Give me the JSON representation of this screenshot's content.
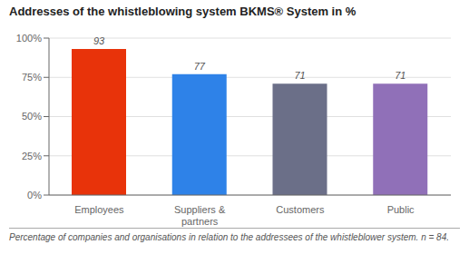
{
  "chart_data": {
    "type": "bar",
    "title": "Addresses of the whistleblowing system BKMS® System in %",
    "categories": [
      "Employees",
      "Suppliers &\npartners",
      "Customers",
      "Public"
    ],
    "values": [
      93,
      77,
      71,
      71
    ],
    "colors": [
      "#e8330a",
      "#2e82e8",
      "#6b6f88",
      "#9070b8"
    ],
    "ylim": [
      0,
      100
    ],
    "yticks": [
      {
        "value": 0,
        "label": "0%"
      },
      {
        "value": 25,
        "label": "25%"
      },
      {
        "value": 50,
        "label": "50%"
      },
      {
        "value": 75,
        "label": "75%"
      },
      {
        "value": 100,
        "label": "100%"
      }
    ],
    "grid": true,
    "data_labels": true,
    "footnote": "Percentage of companies and organisations in relation to the addressees of the whistleblower system. n = 84."
  }
}
